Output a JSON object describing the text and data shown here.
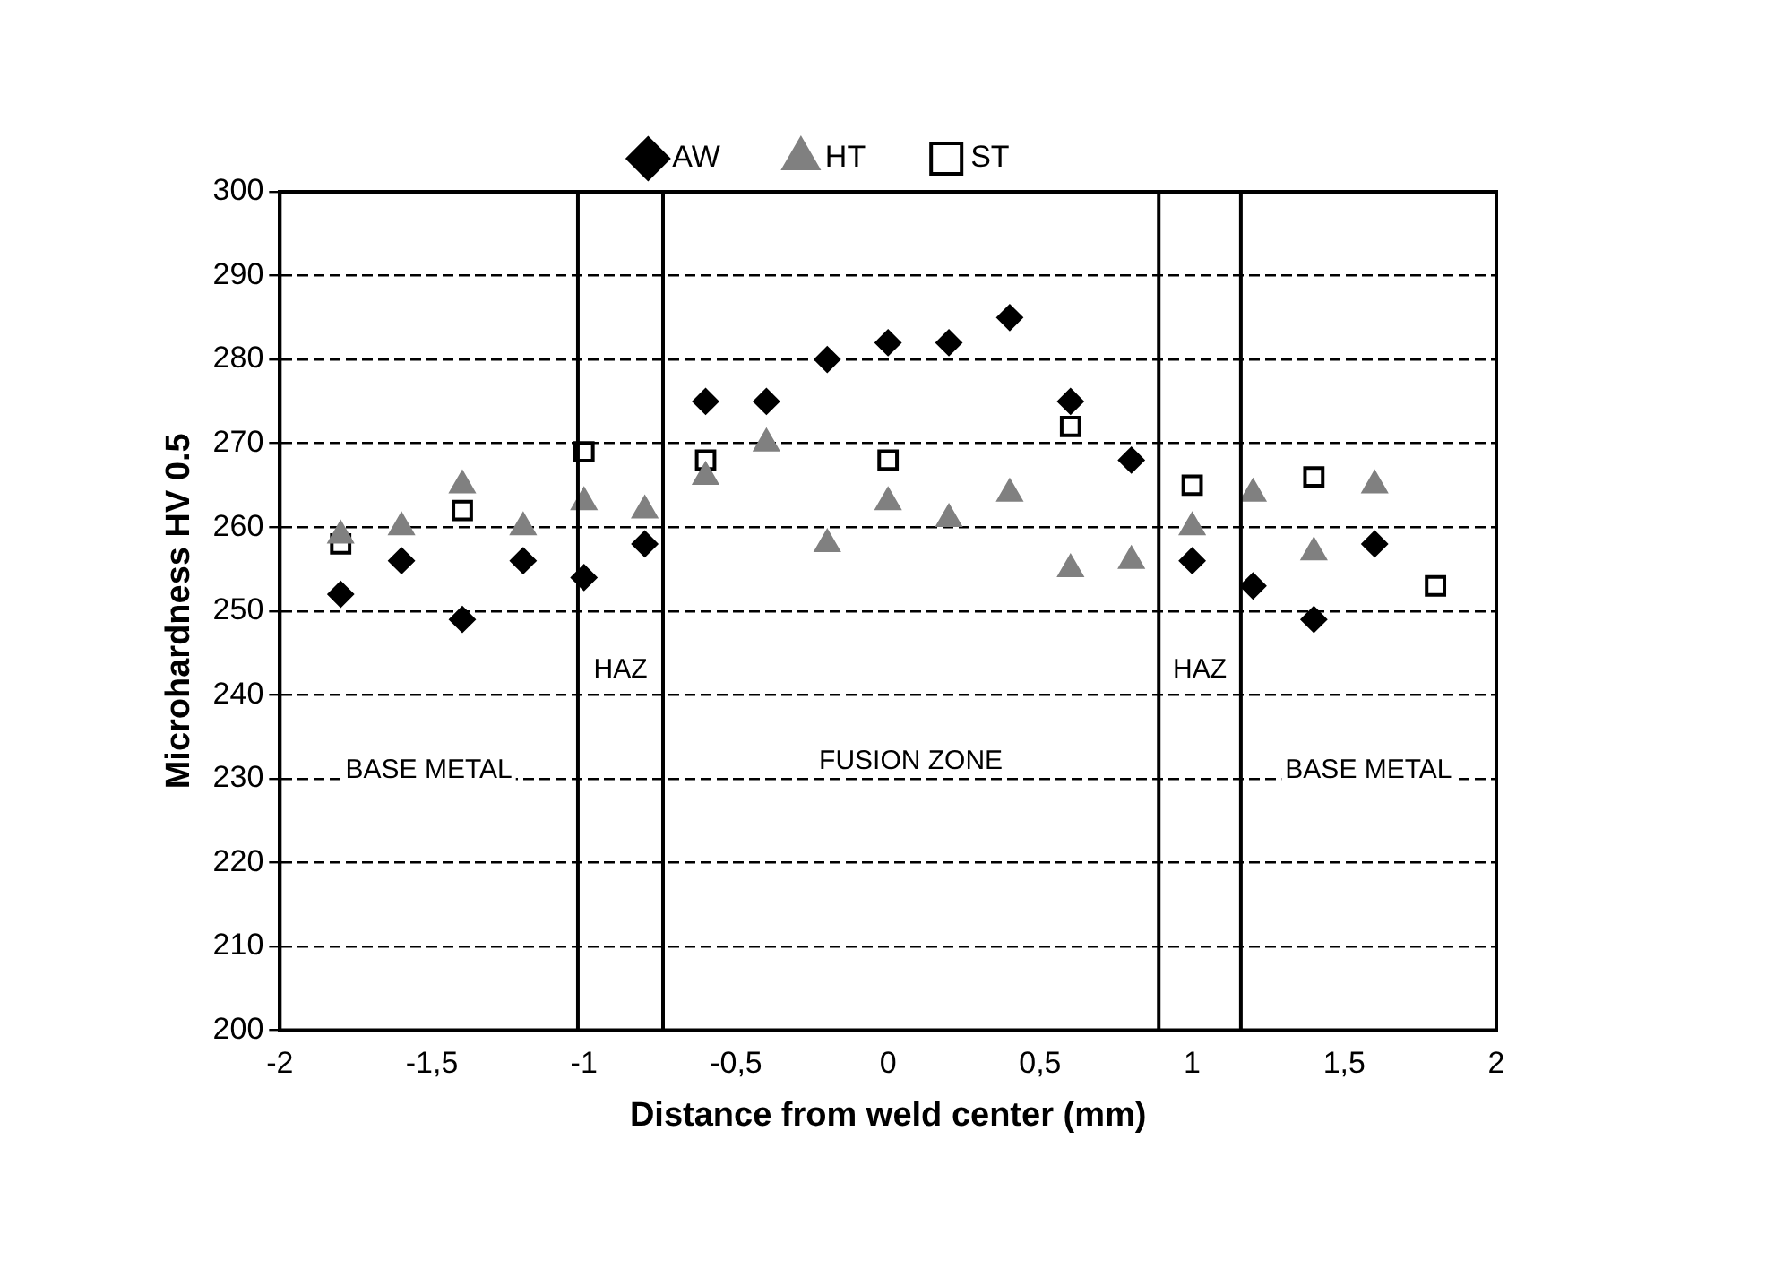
{
  "chart_data": {
    "type": "scatter",
    "xlabel": "Distance from weld center (mm)",
    "ylabel": "Microhardness HV 0.5",
    "xlim": [
      -2,
      2
    ],
    "xticks": [
      {
        "value": -2,
        "label": "-2"
      },
      {
        "value": -1.5,
        "label": "-1,5"
      },
      {
        "value": -1,
        "label": "-1"
      },
      {
        "value": -0.5,
        "label": "-0,5"
      },
      {
        "value": 0,
        "label": "0"
      },
      {
        "value": 0.5,
        "label": "0,5"
      },
      {
        "value": 1,
        "label": "1"
      },
      {
        "value": 1.5,
        "label": "1,5"
      },
      {
        "value": 2,
        "label": "2"
      }
    ],
    "ylim": [
      200,
      300
    ],
    "yticks": [
      200,
      210,
      220,
      230,
      240,
      250,
      260,
      270,
      280,
      290,
      300
    ],
    "grid": "y",
    "legend": "top",
    "series": [
      {
        "name": "AW",
        "color": "#000000",
        "marker": "diamond",
        "x": [
          -1.8,
          -1.6,
          -1.4,
          -1.2,
          -1,
          -0.8,
          -0.6,
          -0.4,
          -0.2,
          0,
          0.2,
          0.4,
          0.6,
          0.8,
          1,
          1.2,
          1.4,
          1.6
        ],
        "values": [
          252,
          256,
          249,
          256,
          254,
          258,
          275,
          275,
          280,
          282,
          282,
          285,
          275,
          268,
          256,
          253,
          249,
          258
        ]
      },
      {
        "name": "HT",
        "color": "#808080",
        "marker": "triangle",
        "x": [
          -1.8,
          -1.6,
          -1.4,
          -1.2,
          -1,
          -0.8,
          -0.6,
          -0.4,
          -0.2,
          0,
          0.2,
          0.4,
          0.6,
          0.8,
          1,
          1.2,
          1.4,
          1.6
        ],
        "values": [
          259,
          260,
          265,
          260,
          263,
          262,
          266,
          270,
          258,
          263,
          261,
          264,
          255,
          256,
          260,
          264,
          257,
          265
        ]
      },
      {
        "name": "ST",
        "color": "#000000",
        "marker": "square",
        "x": [
          -1.8,
          -1.4,
          -1,
          -0.6,
          0,
          0.6,
          1,
          1.4,
          1.8
        ],
        "values": [
          258,
          262,
          269,
          268,
          268,
          272,
          265,
          266,
          253
        ]
      }
    ],
    "ref_lines": [
      {
        "axis": "x",
        "value": -1.02,
        "color": "#000000"
      },
      {
        "axis": "x",
        "value": -0.74,
        "color": "#000000"
      },
      {
        "axis": "x",
        "value": 0.89,
        "color": "#000000"
      },
      {
        "axis": "x",
        "value": 1.16,
        "color": "#000000"
      }
    ],
    "annotations": [
      "BASE METAL",
      "HAZ",
      "FUSION ZONE",
      "HAZ",
      "BASE METAL"
    ]
  }
}
